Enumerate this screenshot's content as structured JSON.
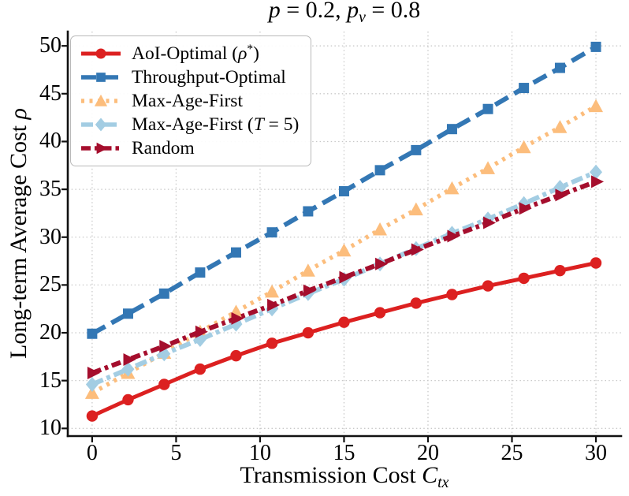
{
  "title_fmt": "*p* = 0.2, *p*_{*v*} = 0.8",
  "chart_data": {
    "type": "line",
    "title": "p = 0.2, p_v = 0.8",
    "xlabel": "Transmission Cost C_tx",
    "ylabel": "Long-term Average Cost ρ",
    "xlabel_fmt": "Transmission Cost *C*_{*tx*}",
    "ylabel_fmt": "Long-term Average Cost *ρ*",
    "xlim": [
      -1.45,
      31.5
    ],
    "ylim": [
      9.2,
      51.5
    ],
    "xticks": [
      0,
      5,
      10,
      15,
      20,
      25,
      30
    ],
    "yticks": [
      10,
      15,
      20,
      25,
      30,
      35,
      40,
      45,
      50
    ],
    "grid": "dotted",
    "grid_color": "#c9c9c9",
    "spine_color": "#111111",
    "legend_position": "upper-left",
    "x": [
      0,
      2.14,
      4.29,
      6.43,
      8.57,
      10.71,
      12.86,
      15,
      17.14,
      19.29,
      21.43,
      23.57,
      25.71,
      27.86,
      30
    ],
    "series": [
      {
        "name": "AoI-Optimal (ρ*)",
        "label_fmt": "AoI-Optimal (*ρ*^{*})",
        "color": "#dc2020",
        "linestyle": "solid",
        "marker": "circle",
        "linewidth": 5,
        "values": [
          11.3,
          13.0,
          14.6,
          16.2,
          17.6,
          18.9,
          20.0,
          21.1,
          22.1,
          23.1,
          24.0,
          24.9,
          25.7,
          26.5,
          27.3
        ]
      },
      {
        "name": "Throughput-Optimal",
        "label_fmt": "Throughput-Optimal",
        "color": "#3377b4",
        "linestyle": "dashed",
        "marker": "square",
        "linewidth": 6,
        "values": [
          19.9,
          22.0,
          24.1,
          26.3,
          28.4,
          30.5,
          32.7,
          34.8,
          37.0,
          39.1,
          41.3,
          43.4,
          45.6,
          47.7,
          49.9
        ]
      },
      {
        "name": "Max-Age-First",
        "label_fmt": "Max-Age-First",
        "color": "#fcbd7c",
        "linestyle": "dotted",
        "marker": "triangle-up",
        "linewidth": 5.5,
        "values": [
          13.7,
          15.8,
          17.9,
          20.1,
          22.2,
          24.3,
          26.5,
          28.6,
          30.8,
          32.9,
          35.1,
          37.2,
          39.4,
          41.5,
          43.7
        ]
      },
      {
        "name": "Max-Age-First (T=5)",
        "label_fmt": "Max-Age-First (*T* = 5)",
        "color": "#a3cde3",
        "linestyle": "dashdot-long",
        "marker": "diamond",
        "linewidth": 6,
        "values": [
          14.6,
          16.2,
          17.8,
          19.3,
          20.9,
          22.5,
          24.1,
          25.6,
          27.2,
          28.8,
          30.4,
          31.9,
          33.5,
          35.2,
          36.8
        ]
      },
      {
        "name": "Random",
        "label_fmt": "Random",
        "color": "#a50e2d",
        "linestyle": "dashdot",
        "marker": "triangle-right",
        "linewidth": 6,
        "values": [
          15.8,
          17.2,
          18.6,
          20.1,
          21.5,
          22.9,
          24.4,
          25.8,
          27.2,
          28.7,
          30.1,
          31.5,
          33.0,
          34.4,
          35.8
        ]
      }
    ]
  }
}
